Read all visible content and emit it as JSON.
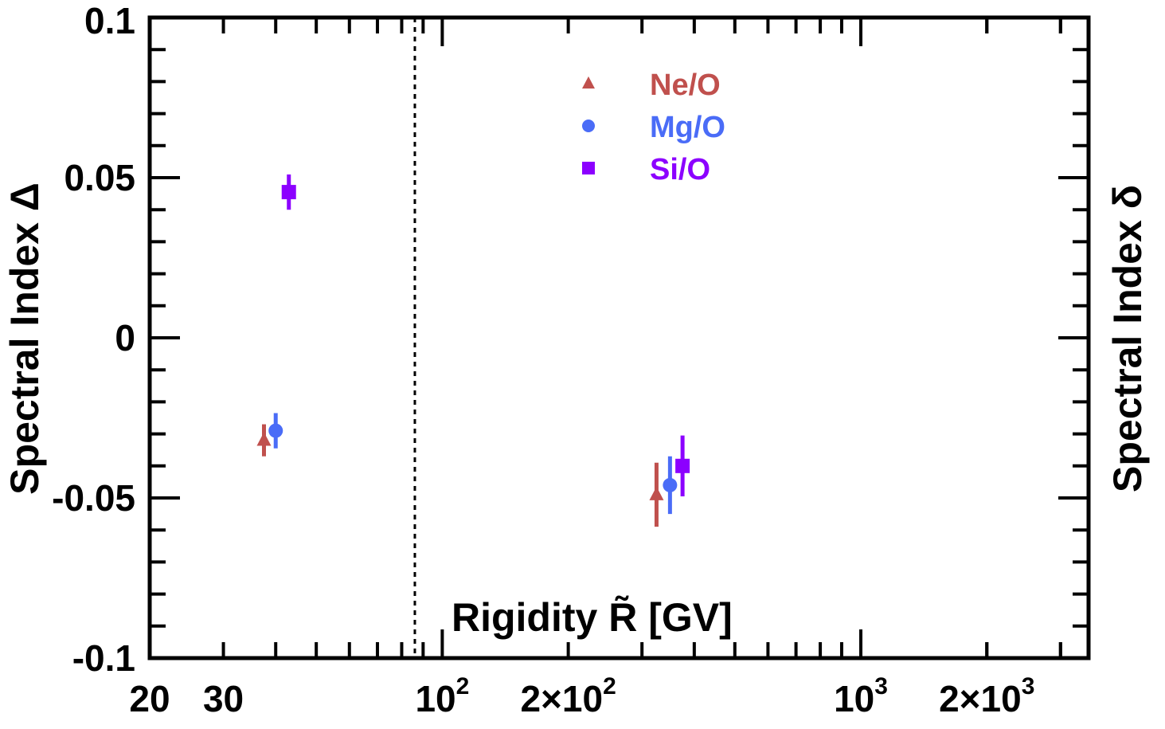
{
  "chart_data": {
    "type": "scatter",
    "title": "",
    "xlabel": "Rigidity  R̃ [GV]",
    "ylabel": "Spectral Index  Δ",
    "ylabel_right": "Spectral Index  δ",
    "xscale": "log",
    "xlim": [
      20,
      3500
    ],
    "ylim": [
      -0.1,
      0.1
    ],
    "x_tick_labels": [
      {
        "value": 20,
        "label": "20"
      },
      {
        "value": 30,
        "label": "30"
      },
      {
        "value": 100,
        "label": "10",
        "sup": "2"
      },
      {
        "value": 200,
        "label": "2×10",
        "sup": "2"
      },
      {
        "value": 1000,
        "label": "10",
        "sup": "3"
      },
      {
        "value": 2000,
        "label": "2×10",
        "sup": "3"
      }
    ],
    "y_tick_labels": [
      {
        "value": 0.1,
        "label": "0.1"
      },
      {
        "value": 0.05,
        "label": "0.05"
      },
      {
        "value": 0,
        "label": "0"
      },
      {
        "value": -0.05,
        "label": "-0.05"
      },
      {
        "value": -0.1,
        "label": "-0.1"
      }
    ],
    "reference_line": {
      "x": 86,
      "style": "dotted"
    },
    "legend_position": "top-center",
    "series": [
      {
        "name": "Ne/O",
        "color": "#c0504d",
        "marker": "triangle",
        "points": [
          {
            "x": 37.5,
            "y": -0.032,
            "err": 0.005
          },
          {
            "x": 325,
            "y": -0.049,
            "err": 0.01
          }
        ]
      },
      {
        "name": "Mg/O",
        "color": "#4a6cf7",
        "marker": "circle",
        "points": [
          {
            "x": 40,
            "y": -0.029,
            "err": 0.0055
          },
          {
            "x": 350,
            "y": -0.046,
            "err": 0.009
          }
        ]
      },
      {
        "name": "Si/O",
        "color": "#8c00ff",
        "marker": "square",
        "points": [
          {
            "x": 43,
            "y": 0.0455,
            "err": 0.0055
          },
          {
            "x": 375,
            "y": -0.04,
            "err": 0.0095
          }
        ]
      }
    ]
  }
}
